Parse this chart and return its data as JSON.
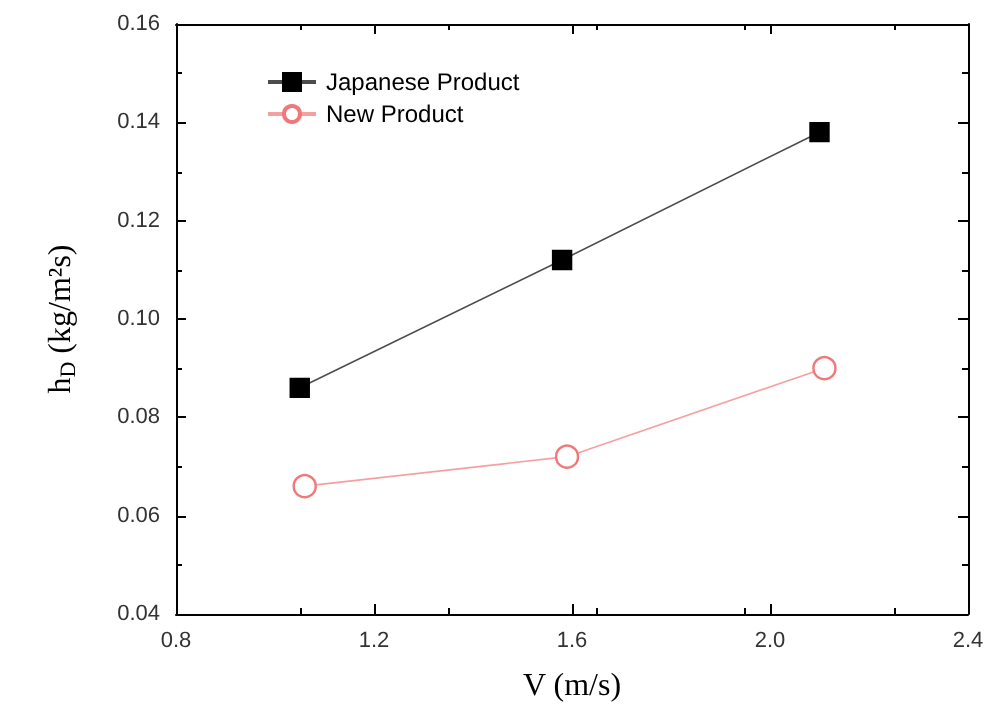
{
  "chart_data": {
    "type": "line",
    "xlabel": "V (m/s)",
    "ylabel": "h$_{D}$ (kg/m²s)",
    "xlim": [
      0.8,
      2.4
    ],
    "xticks": [
      0.8,
      1.2,
      1.6,
      {
        "value": 2.0,
        "label": "2.0"
      },
      2.4
    ],
    "ylim": [
      0.04,
      0.16
    ],
    "yticks": [
      0.04,
      0.06,
      0.08,
      {
        "value": 0.1,
        "label": "0.10"
      },
      0.12,
      0.14,
      0.16
    ],
    "grid": false,
    "legend": "top left",
    "series": [
      {
        "name": "Japanese Product",
        "color": "#000000",
        "marker": "square",
        "x": [
          1.05,
          1.58,
          2.1
        ],
        "values": [
          0.086,
          0.112,
          0.138
        ]
      },
      {
        "name": "New Product",
        "color": "#f07878",
        "marker": "circle",
        "x": [
          1.06,
          1.59,
          2.11
        ],
        "values": [
          0.066,
          0.072,
          0.09
        ]
      }
    ]
  }
}
